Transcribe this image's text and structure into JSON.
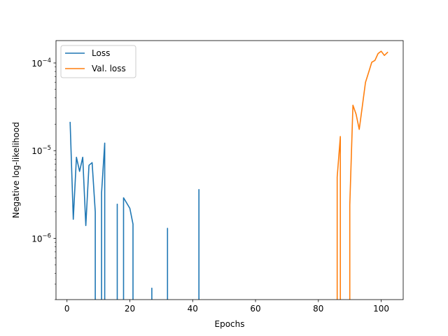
{
  "chart_data": {
    "type": "line",
    "title": "",
    "xlabel": "Epochs",
    "ylabel": "Negative log-likelihood",
    "yscale": "log",
    "xlim": [
      -3.5,
      107
    ],
    "ylim": [
      2e-07,
      0.00018
    ],
    "xticks": [
      0,
      20,
      40,
      60,
      80,
      100
    ],
    "yticks": [
      {
        "value": 1e-06,
        "base": "10",
        "exp": "−6"
      },
      {
        "value": 1e-05,
        "base": "10",
        "exp": "−5"
      },
      {
        "value": 0.0001,
        "base": "10",
        "exp": "−4"
      }
    ],
    "grid": false,
    "legend": {
      "position": "top-left"
    },
    "series": [
      {
        "name": "Loss",
        "color": "#1f77b4",
        "points": [
          [
            1,
            2.1e-05
          ],
          [
            2,
            1.65e-06
          ],
          [
            3,
            8.4e-06
          ],
          [
            4,
            5.8e-06
          ],
          [
            5,
            8.4e-06
          ],
          [
            6,
            1.4e-06
          ],
          [
            7,
            6.8e-06
          ],
          [
            8,
            7.3e-06
          ],
          [
            9,
            2e-06
          ],
          [
            9,
            null
          ],
          [
            11,
            null
          ],
          [
            11,
            3.3e-06
          ],
          [
            12,
            1.22e-05
          ],
          [
            12,
            null
          ],
          [
            16,
            null
          ],
          [
            16,
            2.45e-06
          ],
          [
            16,
            null
          ],
          [
            18,
            null
          ],
          [
            18,
            2.9e-06
          ],
          [
            20,
            2.2e-06
          ],
          [
            21,
            1.45e-06
          ],
          [
            21,
            null
          ],
          [
            27,
            null
          ],
          [
            27,
            2.7e-07
          ],
          [
            27,
            null
          ],
          [
            32,
            null
          ],
          [
            32,
            1.3e-06
          ],
          [
            32,
            null
          ],
          [
            42,
            null
          ],
          [
            42,
            3.6e-06
          ],
          [
            42,
            null
          ]
        ]
      },
      {
        "name": "Val. loss",
        "color": "#ff7f0e",
        "points": [
          [
            86,
            null
          ],
          [
            86,
            5e-06
          ],
          [
            87,
            1.45e-05
          ],
          [
            87,
            null
          ],
          [
            90,
            null
          ],
          [
            90,
            2.4e-06
          ],
          [
            91,
            3.3e-05
          ],
          [
            92,
            2.6e-05
          ],
          [
            93,
            1.75e-05
          ],
          [
            94,
            3.2e-05
          ],
          [
            95,
            6e-05
          ],
          [
            96,
            7.8e-05
          ],
          [
            97,
            0.000102
          ],
          [
            98,
            0.000107
          ],
          [
            99,
            0.000128
          ],
          [
            100,
            0.000136
          ],
          [
            101,
            0.000122
          ],
          [
            102,
            0.000132
          ]
        ]
      }
    ]
  }
}
